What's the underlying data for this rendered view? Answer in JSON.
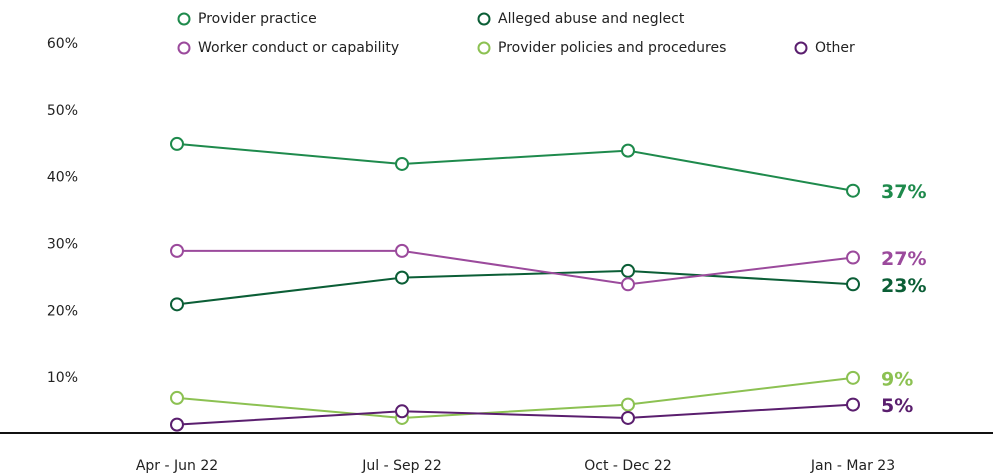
{
  "chart_data": {
    "type": "line",
    "categories": [
      "Apr - Jun 22",
      "Jul - Sep 22",
      "Oct - Dec 22",
      "Jan - Mar 23"
    ],
    "series": [
      {
        "name": "Provider practice",
        "color": "#1e8a4c",
        "values": [
          44,
          41,
          43,
          37
        ],
        "value_labels": [
          null,
          null,
          null,
          "37%"
        ]
      },
      {
        "name": "Alleged abuse and neglect",
        "color": "#0b5e36",
        "values": [
          20,
          24,
          25,
          23
        ],
        "value_labels": [
          null,
          null,
          null,
          "23%"
        ]
      },
      {
        "name": "Worker conduct or capability",
        "color": "#9b4a9c",
        "values": [
          28,
          28,
          23,
          27
        ],
        "value_labels": [
          null,
          null,
          null,
          "27%"
        ]
      },
      {
        "name": "Provider policies and procedures",
        "color": "#8cc152",
        "values": [
          6,
          3,
          5,
          9
        ],
        "value_labels": [
          null,
          null,
          null,
          "9%"
        ]
      },
      {
        "name": "Other",
        "color": "#5a1e6e",
        "values": [
          2,
          4,
          3,
          5
        ],
        "value_labels": [
          null,
          null,
          null,
          "5%"
        ]
      }
    ],
    "ylim": [
      0,
      60
    ],
    "yticks": [
      {
        "value": 10,
        "label": "10%"
      },
      {
        "value": 20,
        "label": "20%"
      },
      {
        "value": 30,
        "label": "30%"
      },
      {
        "value": 40,
        "label": "40%"
      },
      {
        "value": 50,
        "label": "50%"
      },
      {
        "value": 60,
        "label": "60%"
      }
    ]
  }
}
